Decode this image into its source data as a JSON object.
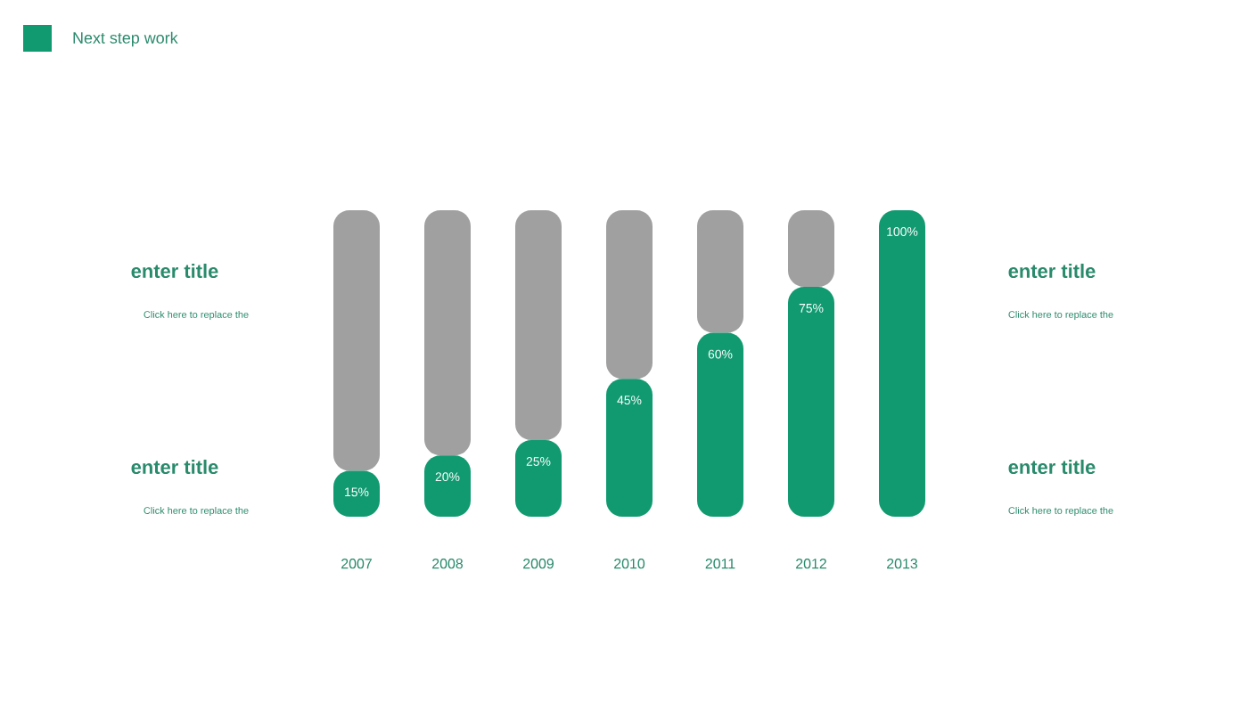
{
  "chart_data": {
    "type": "bar",
    "title": "Next step work",
    "categories": [
      "2007",
      "2008",
      "2009",
      "2010",
      "2011",
      "2012",
      "2013"
    ],
    "series": [
      {
        "color": "#119a70",
        "values": [
          15,
          20,
          25,
          45,
          60,
          75,
          100
        ],
        "value_labels": [
          "15%",
          "20%",
          "25%",
          "45%",
          "60%",
          "75%",
          "100%"
        ]
      },
      {
        "color": "#a0a0a0",
        "values": [
          85,
          80,
          75,
          55,
          40,
          25,
          0
        ]
      }
    ],
    "stacked": true,
    "tick_labels": "x",
    "annotations": [
      "enter title",
      "Click here to replace the",
      "enter title",
      "Click here to replace the",
      "enter title",
      "Click here to replace the",
      "enter title",
      "Click here to replace the"
    ]
  }
}
